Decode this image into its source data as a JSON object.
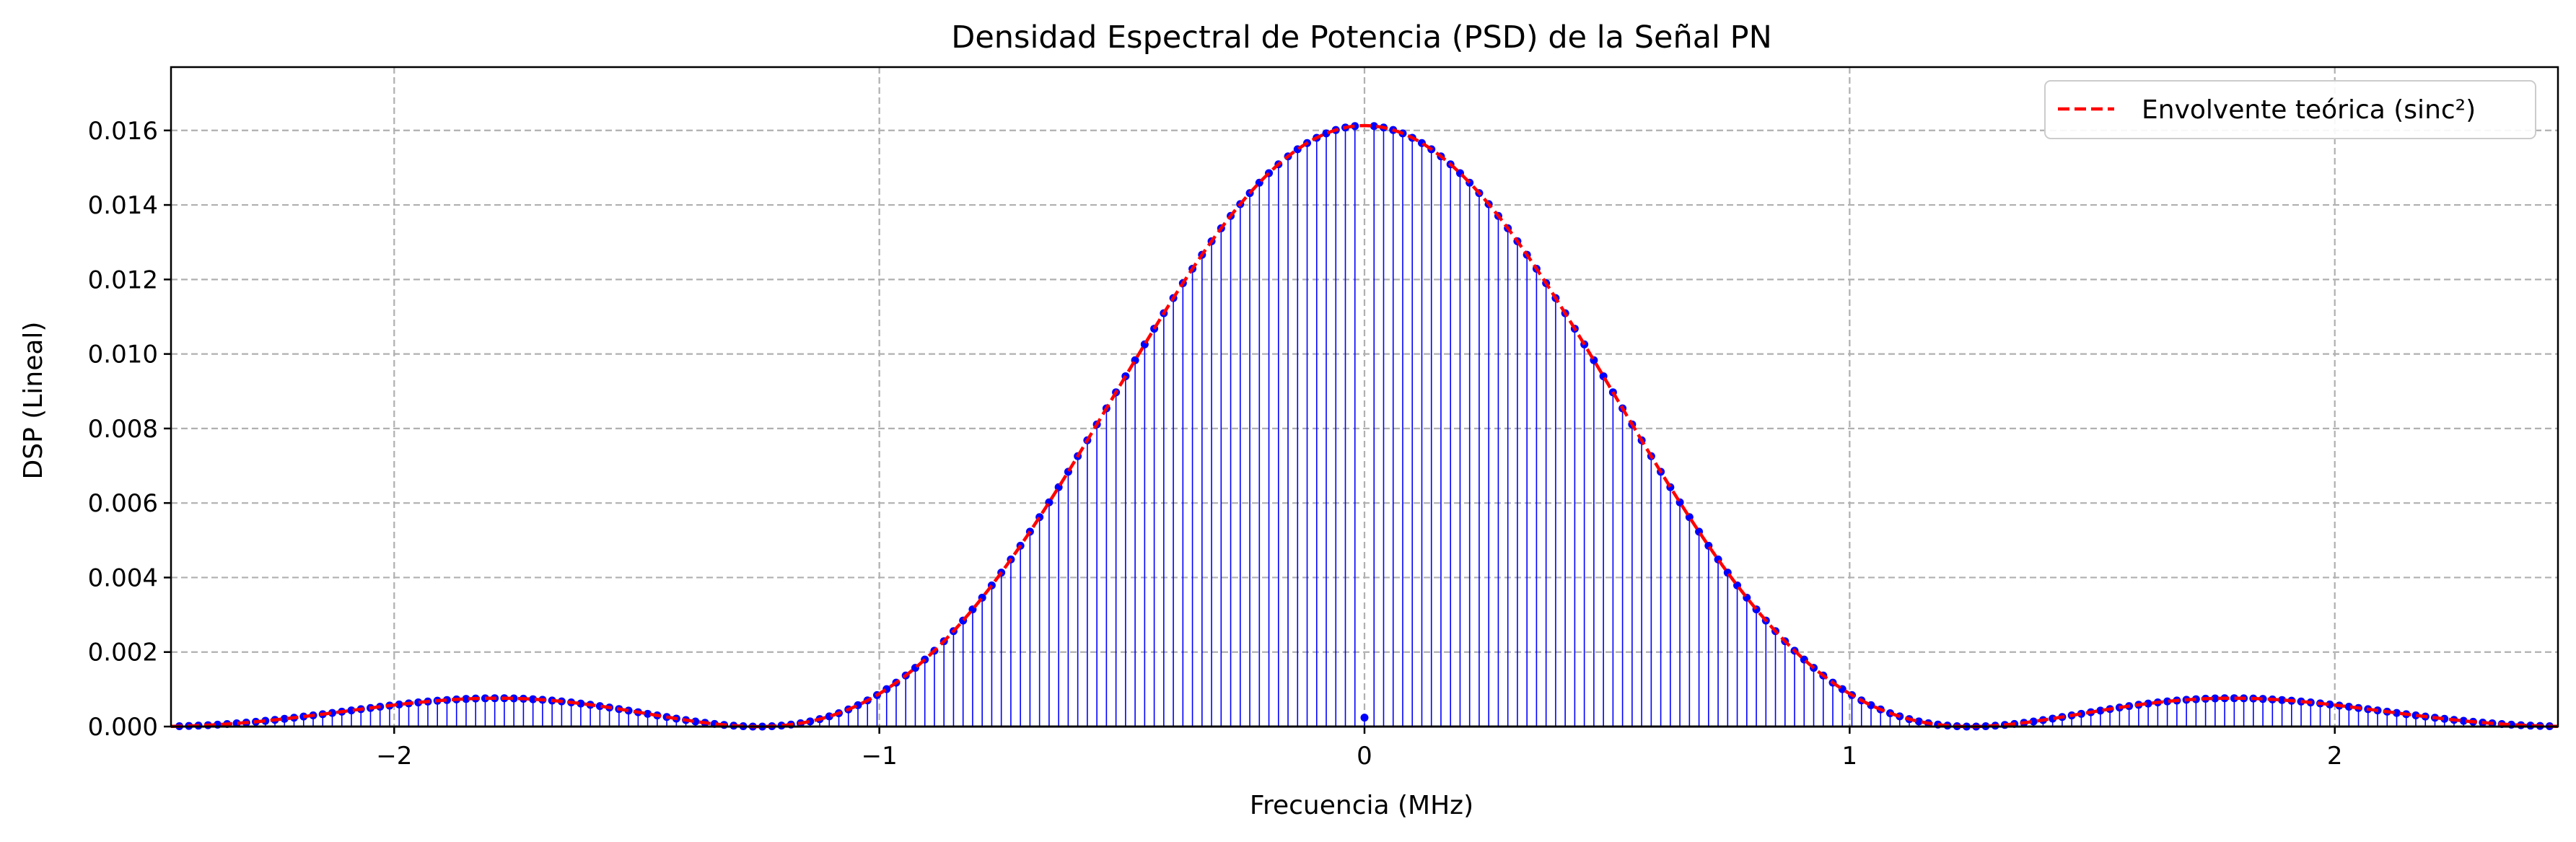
{
  "chart_data": {
    "type": "stem",
    "title": "Densidad Espectral de Potencia (PSD) de la Señal PN",
    "xlabel": "Frecuencia (MHz)",
    "ylabel": "DSP (Lineal)",
    "xlim": [
      -2.46,
      2.46
    ],
    "ylim": [
      0,
      0.0177
    ],
    "x_ticks": [
      -2,
      -1,
      0,
      1,
      2
    ],
    "x_tick_labels": [
      "−2",
      "−1",
      "0",
      "1",
      "2"
    ],
    "y_ticks": [
      0,
      0.002,
      0.004,
      0.006,
      0.008,
      0.01,
      0.012,
      0.014,
      0.016
    ],
    "y_tick_labels": [
      "0.000",
      "0.002",
      "0.004",
      "0.006",
      "0.008",
      "0.010",
      "0.012",
      "0.014",
      "0.016"
    ],
    "grid": true,
    "legend_position": "top-right",
    "series": [
      {
        "kind": "stem",
        "color": "#0000ff",
        "description": "DSP discreta de la secuencia PN: líneas espectrales cada 0.0197 MHz; valor en f=0 ≈ 0.00024; pico ≈ 0.01613 en f=±0.0197; nulos en ±1.25 MHz; lóbulos laterales ≈ 0.00075 en ±1.75 MHz",
        "spacing": 0.0197,
        "peak": 0.01613,
        "null_freq": 1.25,
        "dc_value": 0.00024
      },
      {
        "kind": "line",
        "name": "Envolvente teórica (sinc²)",
        "color": "#ff0000",
        "style": "dashed",
        "peak": 0.01613,
        "null_freq": 1.25
      }
    ],
    "colors": {
      "stem": "#0000ff",
      "envelope": "#ff0000",
      "grid": "#b0b0b0"
    }
  }
}
